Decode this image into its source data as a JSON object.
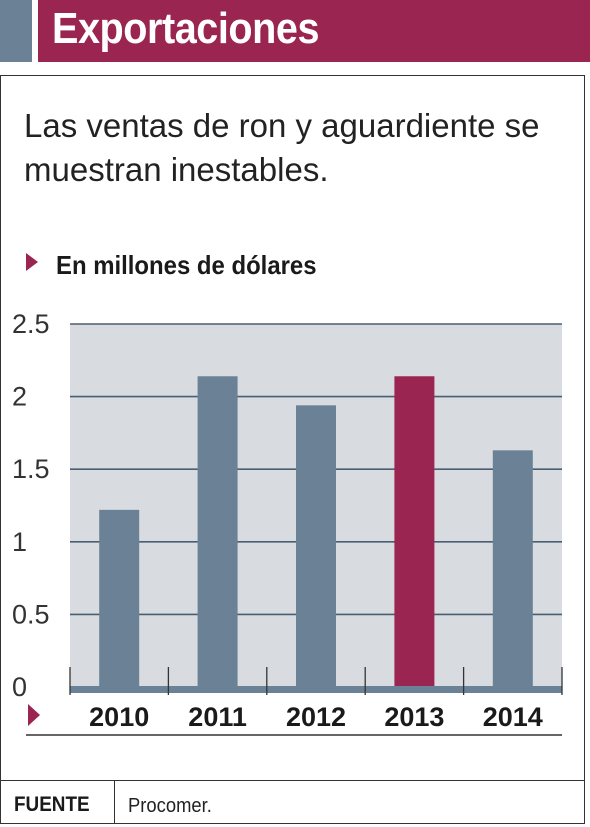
{
  "header": {
    "title": "Exportaciones"
  },
  "subtitle": "Las ventas de ron y aguardiente se muestran inestables.",
  "colors": {
    "accent": "#9a2550",
    "bar": "#6b8296",
    "plot_bg": "#d8dbe0"
  },
  "chart_data": {
    "type": "bar",
    "title": "Exportaciones",
    "subtitle": "Las ventas de ron y aguardiente se muestran inestables.",
    "ylabel": "En millones de dólares",
    "xlabel": "",
    "categories": [
      "2010",
      "2011",
      "2012",
      "2013",
      "2014"
    ],
    "values": [
      1.22,
      2.14,
      1.94,
      2.14,
      1.63
    ],
    "highlight": "2013",
    "ylim": [
      0,
      2.5
    ],
    "yticks": [
      "0",
      "0.5",
      "1",
      "1.5",
      "2",
      "2.5"
    ],
    "grid": true
  },
  "footer": {
    "source_label": "FUENTE",
    "source_value": "Procomer."
  }
}
